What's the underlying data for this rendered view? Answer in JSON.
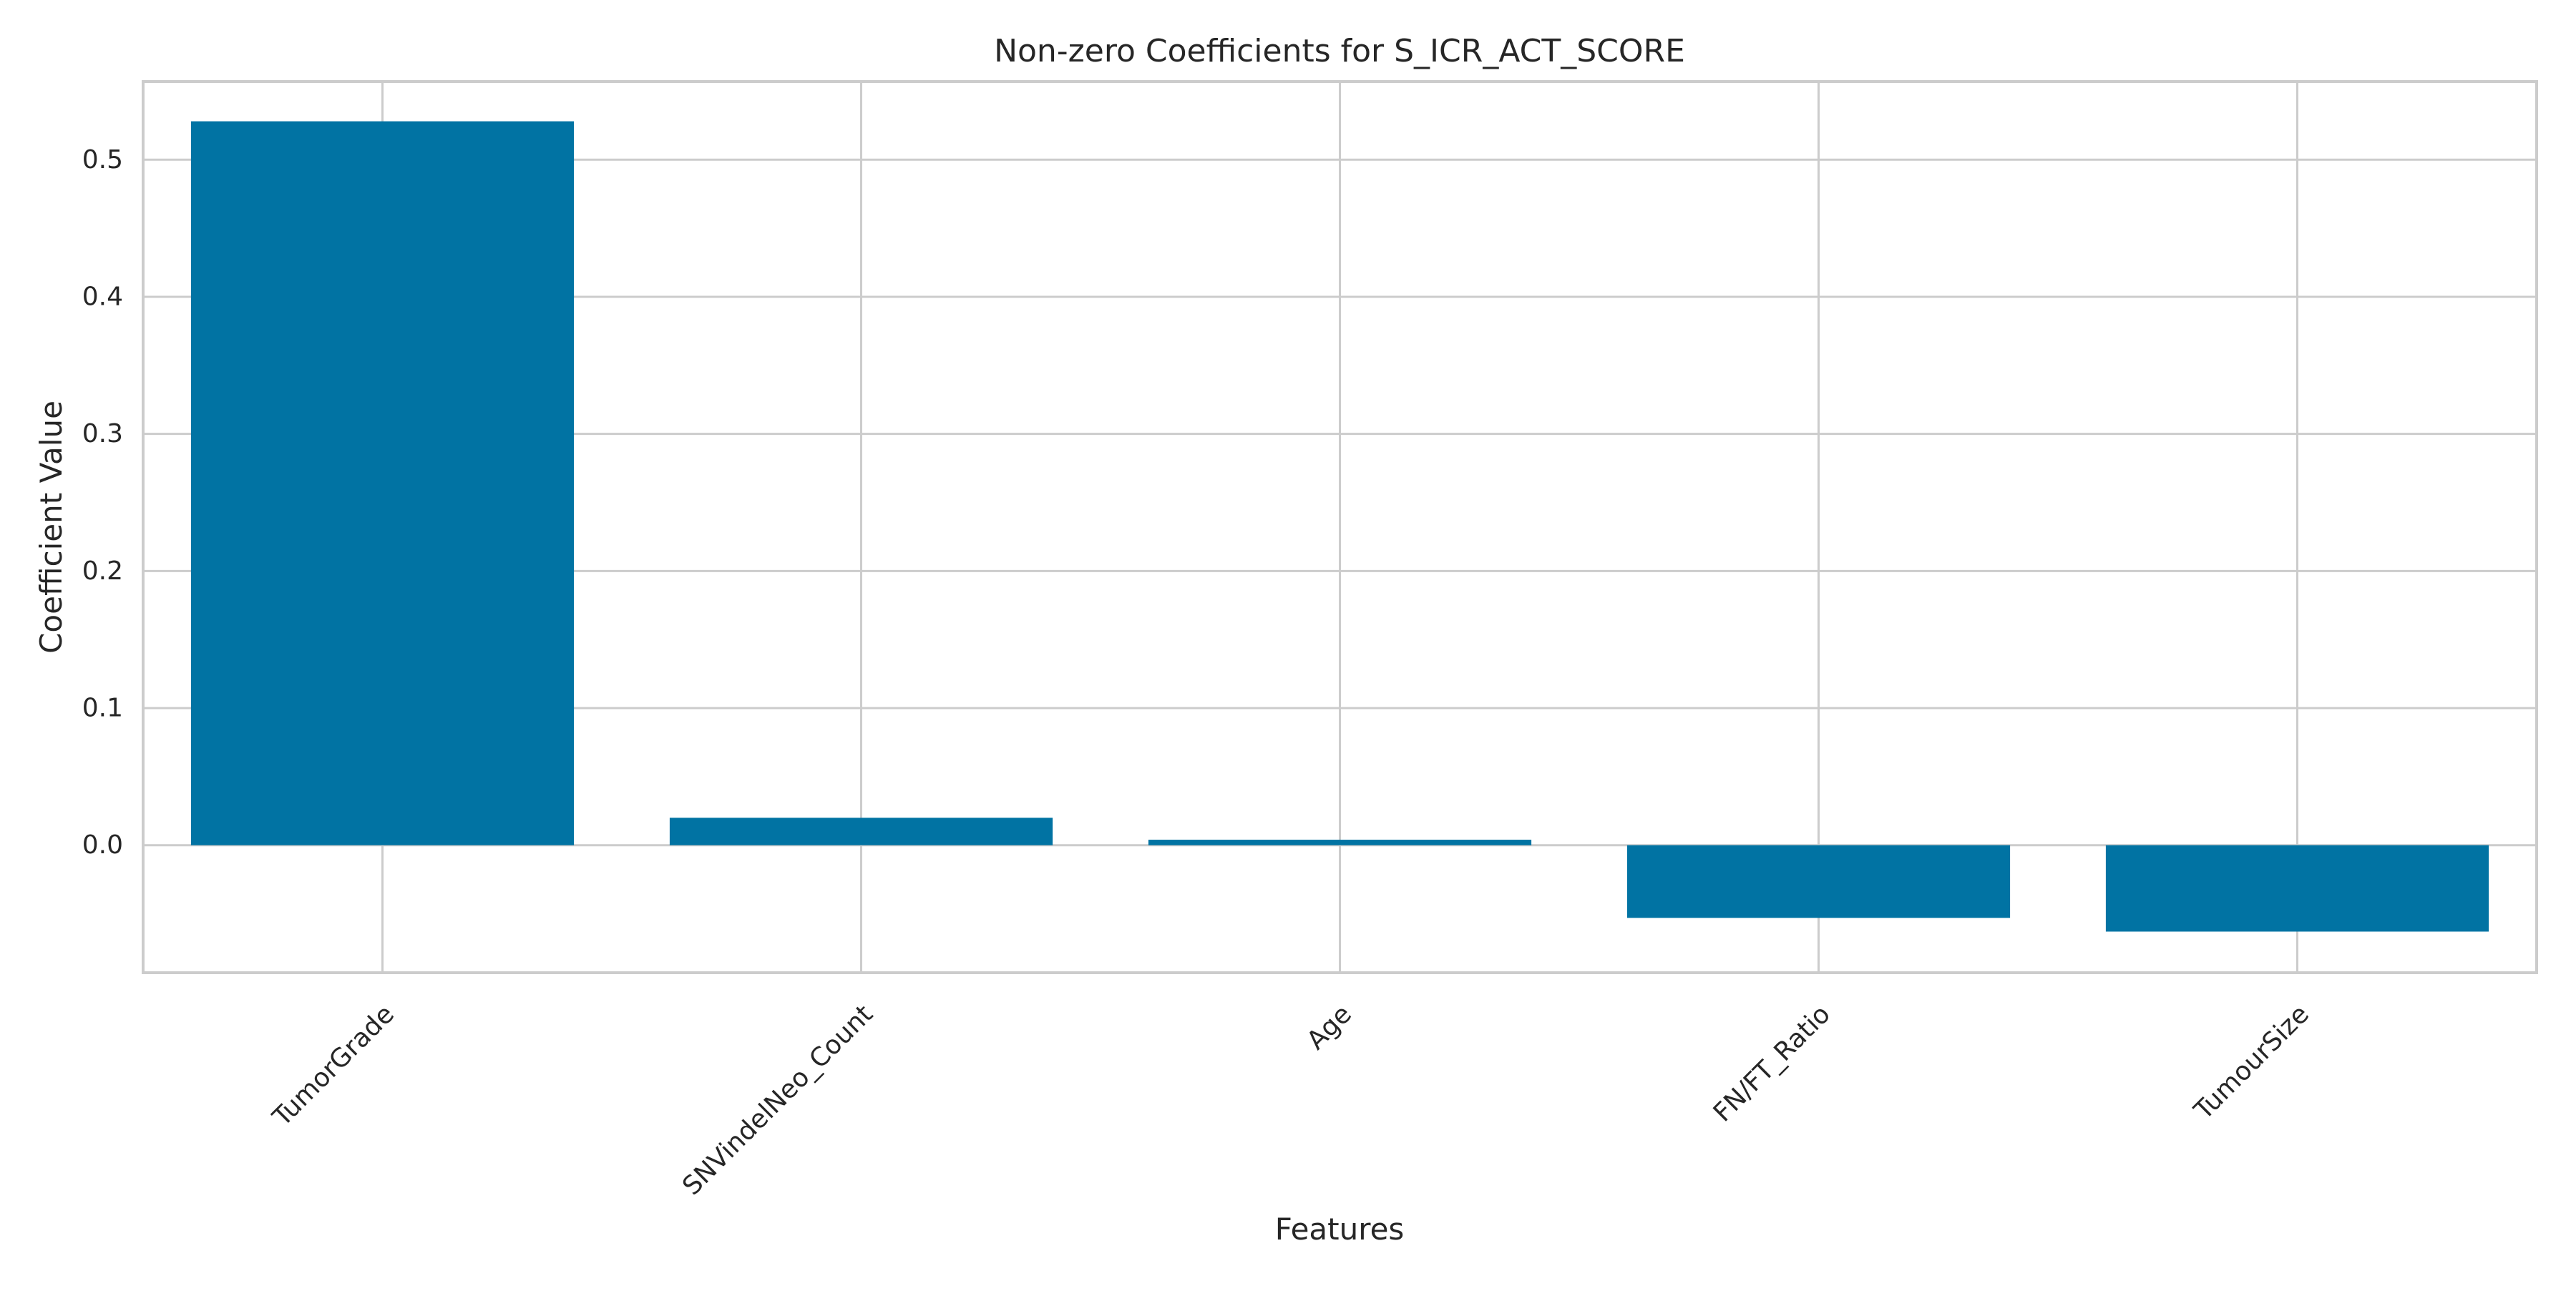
{
  "chart_data": {
    "type": "bar",
    "title": "Non-zero Coefficients for S_ICR_ACT_SCORE",
    "xlabel": "Features",
    "ylabel": "Coefficient Value",
    "categories": [
      "TumorGrade",
      "SNVindelNeo_Count",
      "Age",
      "FN/FT_Ratio",
      "TumourSize"
    ],
    "values": [
      0.528,
      0.02,
      0.004,
      -0.053,
      -0.063
    ],
    "ylim": [
      -0.093,
      0.557
    ],
    "yticks": [
      0.0,
      0.1,
      0.2,
      0.3,
      0.4,
      0.5
    ],
    "ytick_labels": [
      "0.0",
      "0.1",
      "0.2",
      "0.3",
      "0.4",
      "0.5"
    ],
    "grid": true,
    "bar_color": "#0173a3",
    "grid_color": "#cccccc",
    "spine_color": "#cccccc",
    "xtick_rotation_deg": -45
  }
}
